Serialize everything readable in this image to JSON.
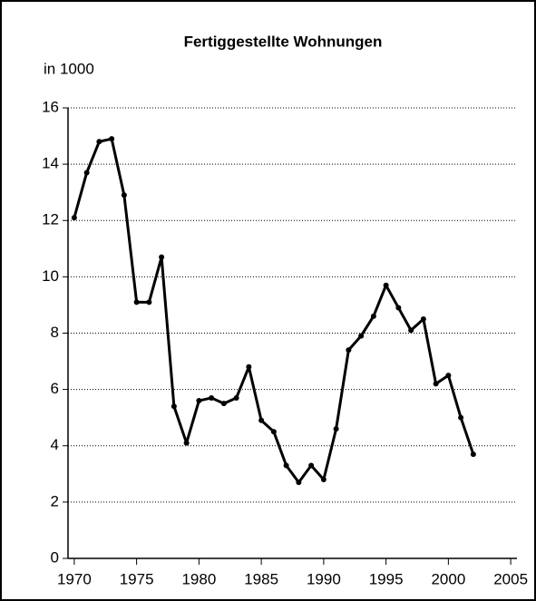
{
  "chart_data": {
    "type": "line",
    "title": "Fertiggestellte Wohnungen",
    "y_label": "in 1000",
    "x": [
      1970,
      1971,
      1972,
      1973,
      1974,
      1975,
      1976,
      1977,
      1978,
      1979,
      1980,
      1981,
      1982,
      1983,
      1984,
      1985,
      1986,
      1987,
      1988,
      1989,
      1990,
      1991,
      1992,
      1993,
      1994,
      1995,
      1996,
      1997,
      1998,
      1999,
      2000,
      2001,
      2002
    ],
    "series": [
      {
        "name": "Fertiggestellte Wohnungen",
        "color": "#000000",
        "values": [
          12.1,
          13.7,
          14.8,
          14.9,
          12.9,
          9.1,
          9.1,
          10.7,
          5.4,
          4.1,
          5.6,
          5.7,
          5.5,
          5.7,
          6.8,
          4.9,
          4.5,
          3.3,
          2.7,
          3.3,
          2.8,
          4.6,
          7.4,
          7.9,
          8.6,
          9.7,
          8.9,
          8.1,
          8.5,
          6.2,
          6.5,
          5.0,
          3.7
        ]
      }
    ],
    "xlim": [
      1969.5,
      2005.5
    ],
    "xticks": [
      1970,
      1975,
      1980,
      1985,
      1990,
      1995,
      2000,
      2005
    ],
    "ylim": [
      0,
      16
    ],
    "yticks": [
      0,
      2,
      4,
      6,
      8,
      10,
      12,
      14,
      16
    ],
    "grid": true
  }
}
